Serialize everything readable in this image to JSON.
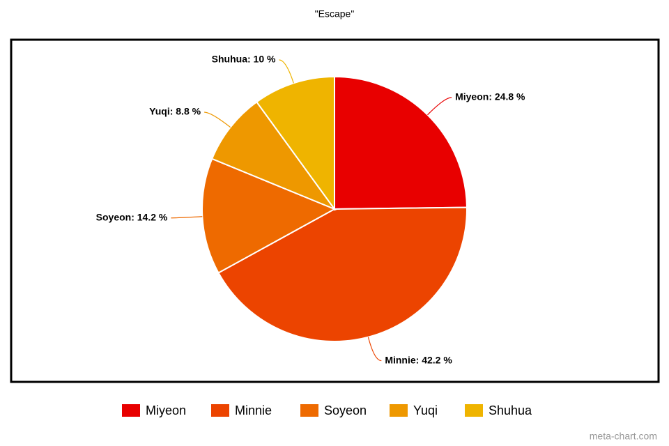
{
  "chart_data": {
    "type": "pie",
    "title": "\"Escape\"",
    "categories": [
      "Miyeon",
      "Minnie",
      "Soyeon",
      "Yuqi",
      "Shuhua"
    ],
    "values": [
      24.8,
      42.2,
      14.2,
      8.8,
      10
    ],
    "value_labels": [
      "Miyeon: 24.8 %",
      "Minnie: 42.2 %",
      "Soyeon: 14.2 %",
      "Yuqi: 8.8 %",
      "Shuhua: 10 %"
    ],
    "colors": [
      "#e80000",
      "#ec4400",
      "#ee6a00",
      "#ee9800",
      "#efb400"
    ],
    "legend": "bottom",
    "watermark": "meta-chart.com"
  }
}
